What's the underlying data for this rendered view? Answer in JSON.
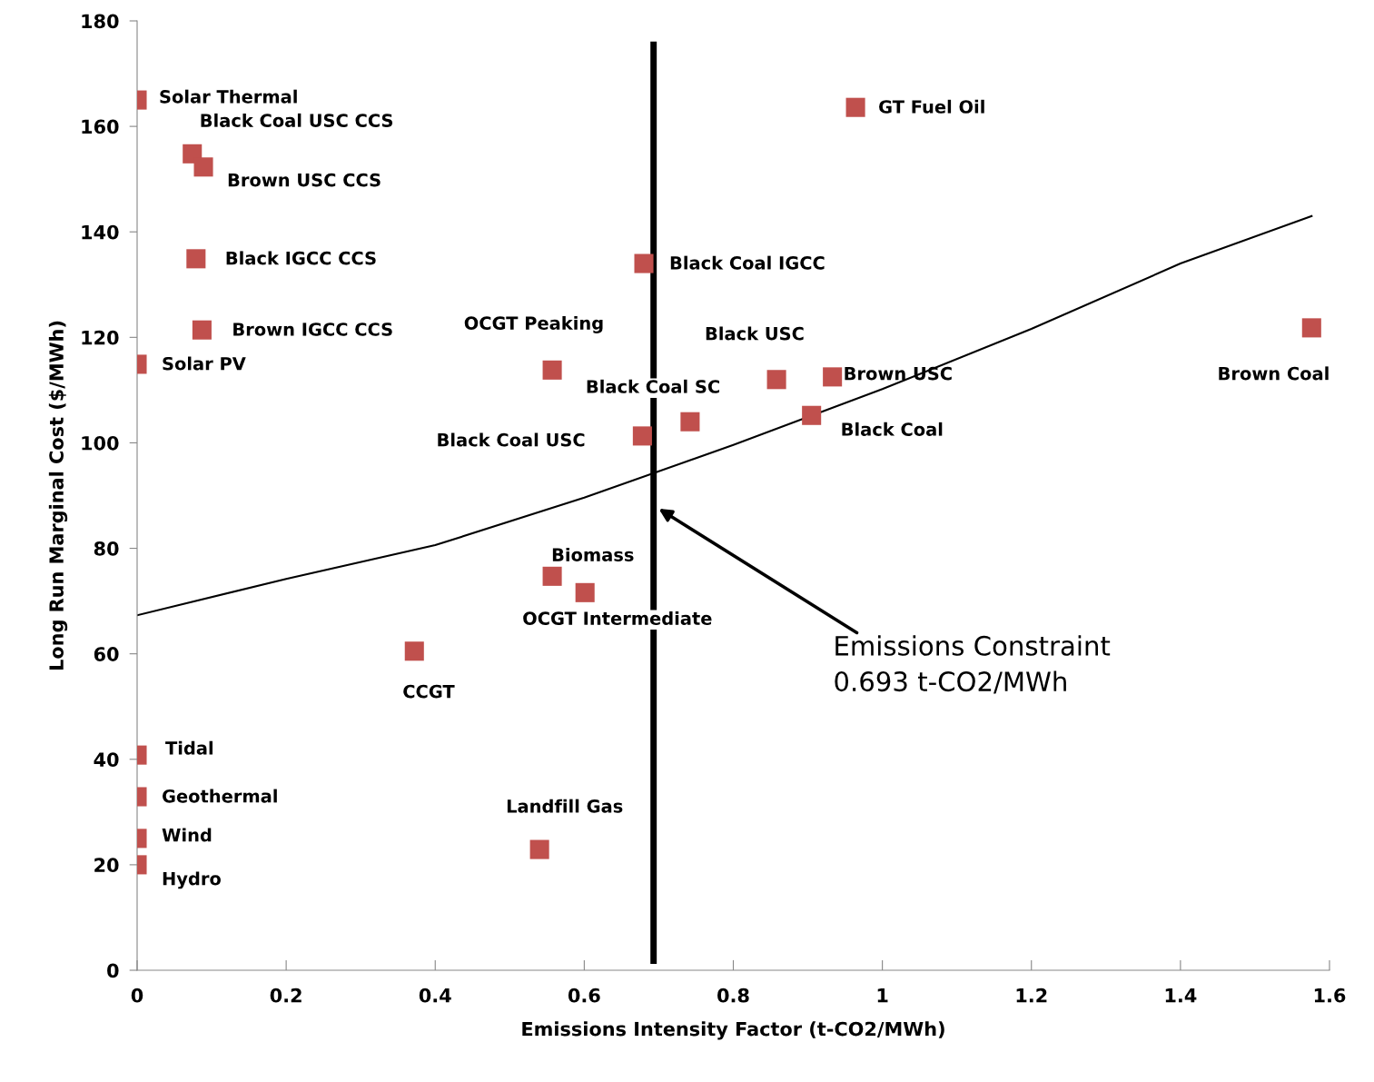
{
  "chart_data": {
    "type": "scatter",
    "xlabel": "Emissions Intensity Factor (t-CO2/MWh)",
    "ylabel": "Long Run Marginal Cost ($/MWh)",
    "xlim": [
      0,
      1.6
    ],
    "xticks": [
      0,
      0.2,
      0.4,
      0.6,
      0.8,
      1,
      1.2,
      1.4,
      1.6
    ],
    "ylim": [
      0,
      180
    ],
    "yticks": [
      0,
      20,
      40,
      60,
      80,
      100,
      120,
      140,
      160,
      180
    ],
    "grid": false,
    "legend": false,
    "series": [
      {
        "color": "#c0504d",
        "marker": "square",
        "x": [
          0,
          0.074,
          0.089,
          0.079,
          0.087,
          0,
          0.557,
          0.68,
          0.678,
          0.742,
          0.858,
          0.933,
          0.905,
          0.964,
          1.576,
          0.557,
          0.601,
          0.372,
          0.54,
          0,
          0,
          0,
          0
        ],
        "values": [
          165.0,
          154.8,
          152.3,
          134.9,
          121.4,
          114.9,
          113.8,
          134.0,
          101.3,
          104.0,
          112.0,
          112.5,
          105.2,
          163.6,
          121.8,
          74.7,
          71.6,
          60.5,
          22.9,
          40.8,
          32.9,
          25.0,
          20.0
        ]
      },
      {
        "type": "line",
        "color": "#000000",
        "marker": "none",
        "line_style": "solid",
        "x": [
          0,
          0.2,
          0.4,
          0.6,
          0.8,
          1.0,
          1.2,
          1.4,
          1.576
        ],
        "values": [
          67.3,
          74.2,
          80.6,
          89.6,
          99.6,
          110.2,
          121.6,
          134.0,
          143.0
        ]
      }
    ],
    "ref_lines": [
      {
        "axis": "x",
        "value": 0.693,
        "color": "#000000"
      }
    ],
    "annotations": [
      {
        "text": "Solar Thermal",
        "x": 0,
        "y": 165.0
      },
      {
        "text": "Black Coal USC CCS",
        "x": 0.074,
        "y": 154.8
      },
      {
        "text": "Brown USC CCS",
        "x": 0.089,
        "y": 152.3
      },
      {
        "text": "Black IGCC CCS",
        "x": 0.079,
        "y": 134.9
      },
      {
        "text": "Brown IGCC CCS",
        "x": 0.087,
        "y": 121.4
      },
      {
        "text": "Solar PV",
        "x": 0,
        "y": 114.9
      },
      "OCGT Peaking",
      {
        "text": "Black Coal IGCC",
        "x": 0.68,
        "y": 134.0
      },
      "Black Coal USC",
      {
        "text": "Black Coal SC",
        "x": 0.742,
        "y": 104.0
      },
      "Black USC",
      {
        "text": "Brown USC",
        "x": 0.933,
        "y": 112.5
      },
      {
        "text": "Black Coal",
        "x": 0.905,
        "y": 105.2
      },
      {
        "text": "GT Fuel Oil",
        "x": 0.964,
        "y": 163.6
      },
      "Brown Coal",
      {
        "text": "Biomass",
        "x": 0.557,
        "y": 74.7
      },
      {
        "text": "OCGT Intermediate",
        "x": 0.601,
        "y": 71.6
      },
      {
        "text": "CCGT",
        "x": 0.372,
        "y": 60.5
      },
      {
        "text": "Landfill Gas",
        "x": 0.54,
        "y": 22.9
      },
      {
        "text": "Tidal",
        "x": 0,
        "y": 40.8
      },
      {
        "text": "Geothermal",
        "x": 0,
        "y": 32.9
      },
      {
        "text": "Wind",
        "x": 0,
        "y": 25.0
      },
      {
        "text": "Hydro",
        "x": 0,
        "y": 20.0
      },
      {
        "text": "Emissions Constraint\n0.693 t-CO2/MWh",
        "x": 0.7,
        "y": 87.5
      }
    ]
  }
}
